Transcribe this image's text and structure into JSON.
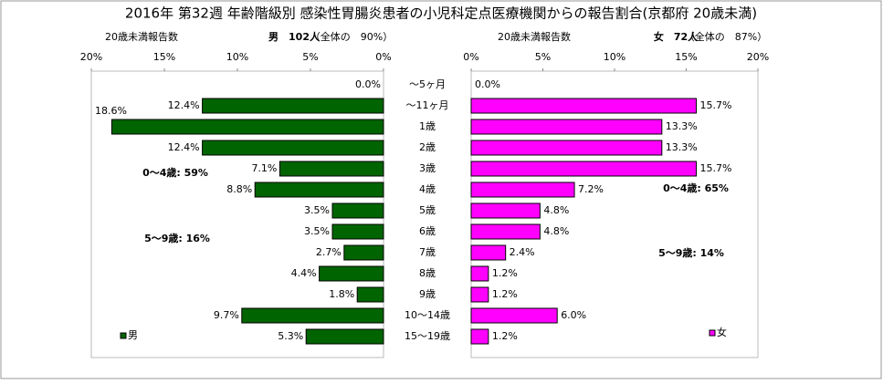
{
  "chart_data": {
    "type": "bar",
    "orientation": "horizontal",
    "title": "2016年 第32週 年齢階級別 感染性胃腸炎患者の小児科定点医療機関からの報告割合(京都府 20歳未満)",
    "categories": [
      "～5ヶ月",
      "～11ヶ月",
      "1歳",
      "2歳",
      "3歳",
      "4歳",
      "5歳",
      "6歳",
      "7歳",
      "8歳",
      "9歳",
      "10～14歳",
      "15～19歳"
    ],
    "series": [
      {
        "name": "男",
        "color": "#006400",
        "header": [
          "20歳未満報告数",
          "男　102人",
          "（全体の　90%）"
        ],
        "values": [
          0.0,
          12.4,
          18.6,
          12.4,
          7.1,
          8.8,
          3.5,
          3.5,
          2.7,
          4.4,
          1.8,
          9.7,
          5.3
        ],
        "value_labels": [
          "0.0%",
          "12.4%",
          "18.6%",
          "12.4%",
          "7.1%",
          "8.8%",
          "3.5%",
          "3.5%",
          "2.7%",
          "4.4%",
          "1.8%",
          "9.7%",
          "5.3%"
        ],
        "xlim": [
          20,
          0
        ],
        "xticks": [
          {
            "value": 20,
            "label": "20%"
          },
          {
            "value": 15,
            "label": "15%"
          },
          {
            "value": 10,
            "label": "10%"
          },
          {
            "value": 5,
            "label": "5%"
          },
          {
            "value": 0,
            "label": "0%"
          }
        ],
        "annotations": [
          "0～4歳: 59%",
          "5～9歳: 16%"
        ]
      },
      {
        "name": "女",
        "color": "#ff00ff",
        "header": [
          "20歳未満報告数",
          "女　72人",
          "（全体の　87%）"
        ],
        "values": [
          0.0,
          15.7,
          13.3,
          13.3,
          15.7,
          7.2,
          4.8,
          4.8,
          2.4,
          1.2,
          1.2,
          6.0,
          1.2
        ],
        "value_labels": [
          "0.0%",
          "15.7%",
          "13.3%",
          "13.3%",
          "15.7%",
          "7.2%",
          "4.8%",
          "4.8%",
          "2.4%",
          "1.2%",
          "1.2%",
          "6.0%",
          "1.2%"
        ],
        "xlim": [
          0,
          20
        ],
        "xticks": [
          {
            "value": 0,
            "label": "0%"
          },
          {
            "value": 5,
            "label": "5%"
          },
          {
            "value": 10,
            "label": "10%"
          },
          {
            "value": 15,
            "label": "15%"
          },
          {
            "value": 20,
            "label": "20%"
          }
        ],
        "annotations": [
          "0～4歳: 65%",
          "5～9歳: 14%"
        ]
      }
    ]
  }
}
